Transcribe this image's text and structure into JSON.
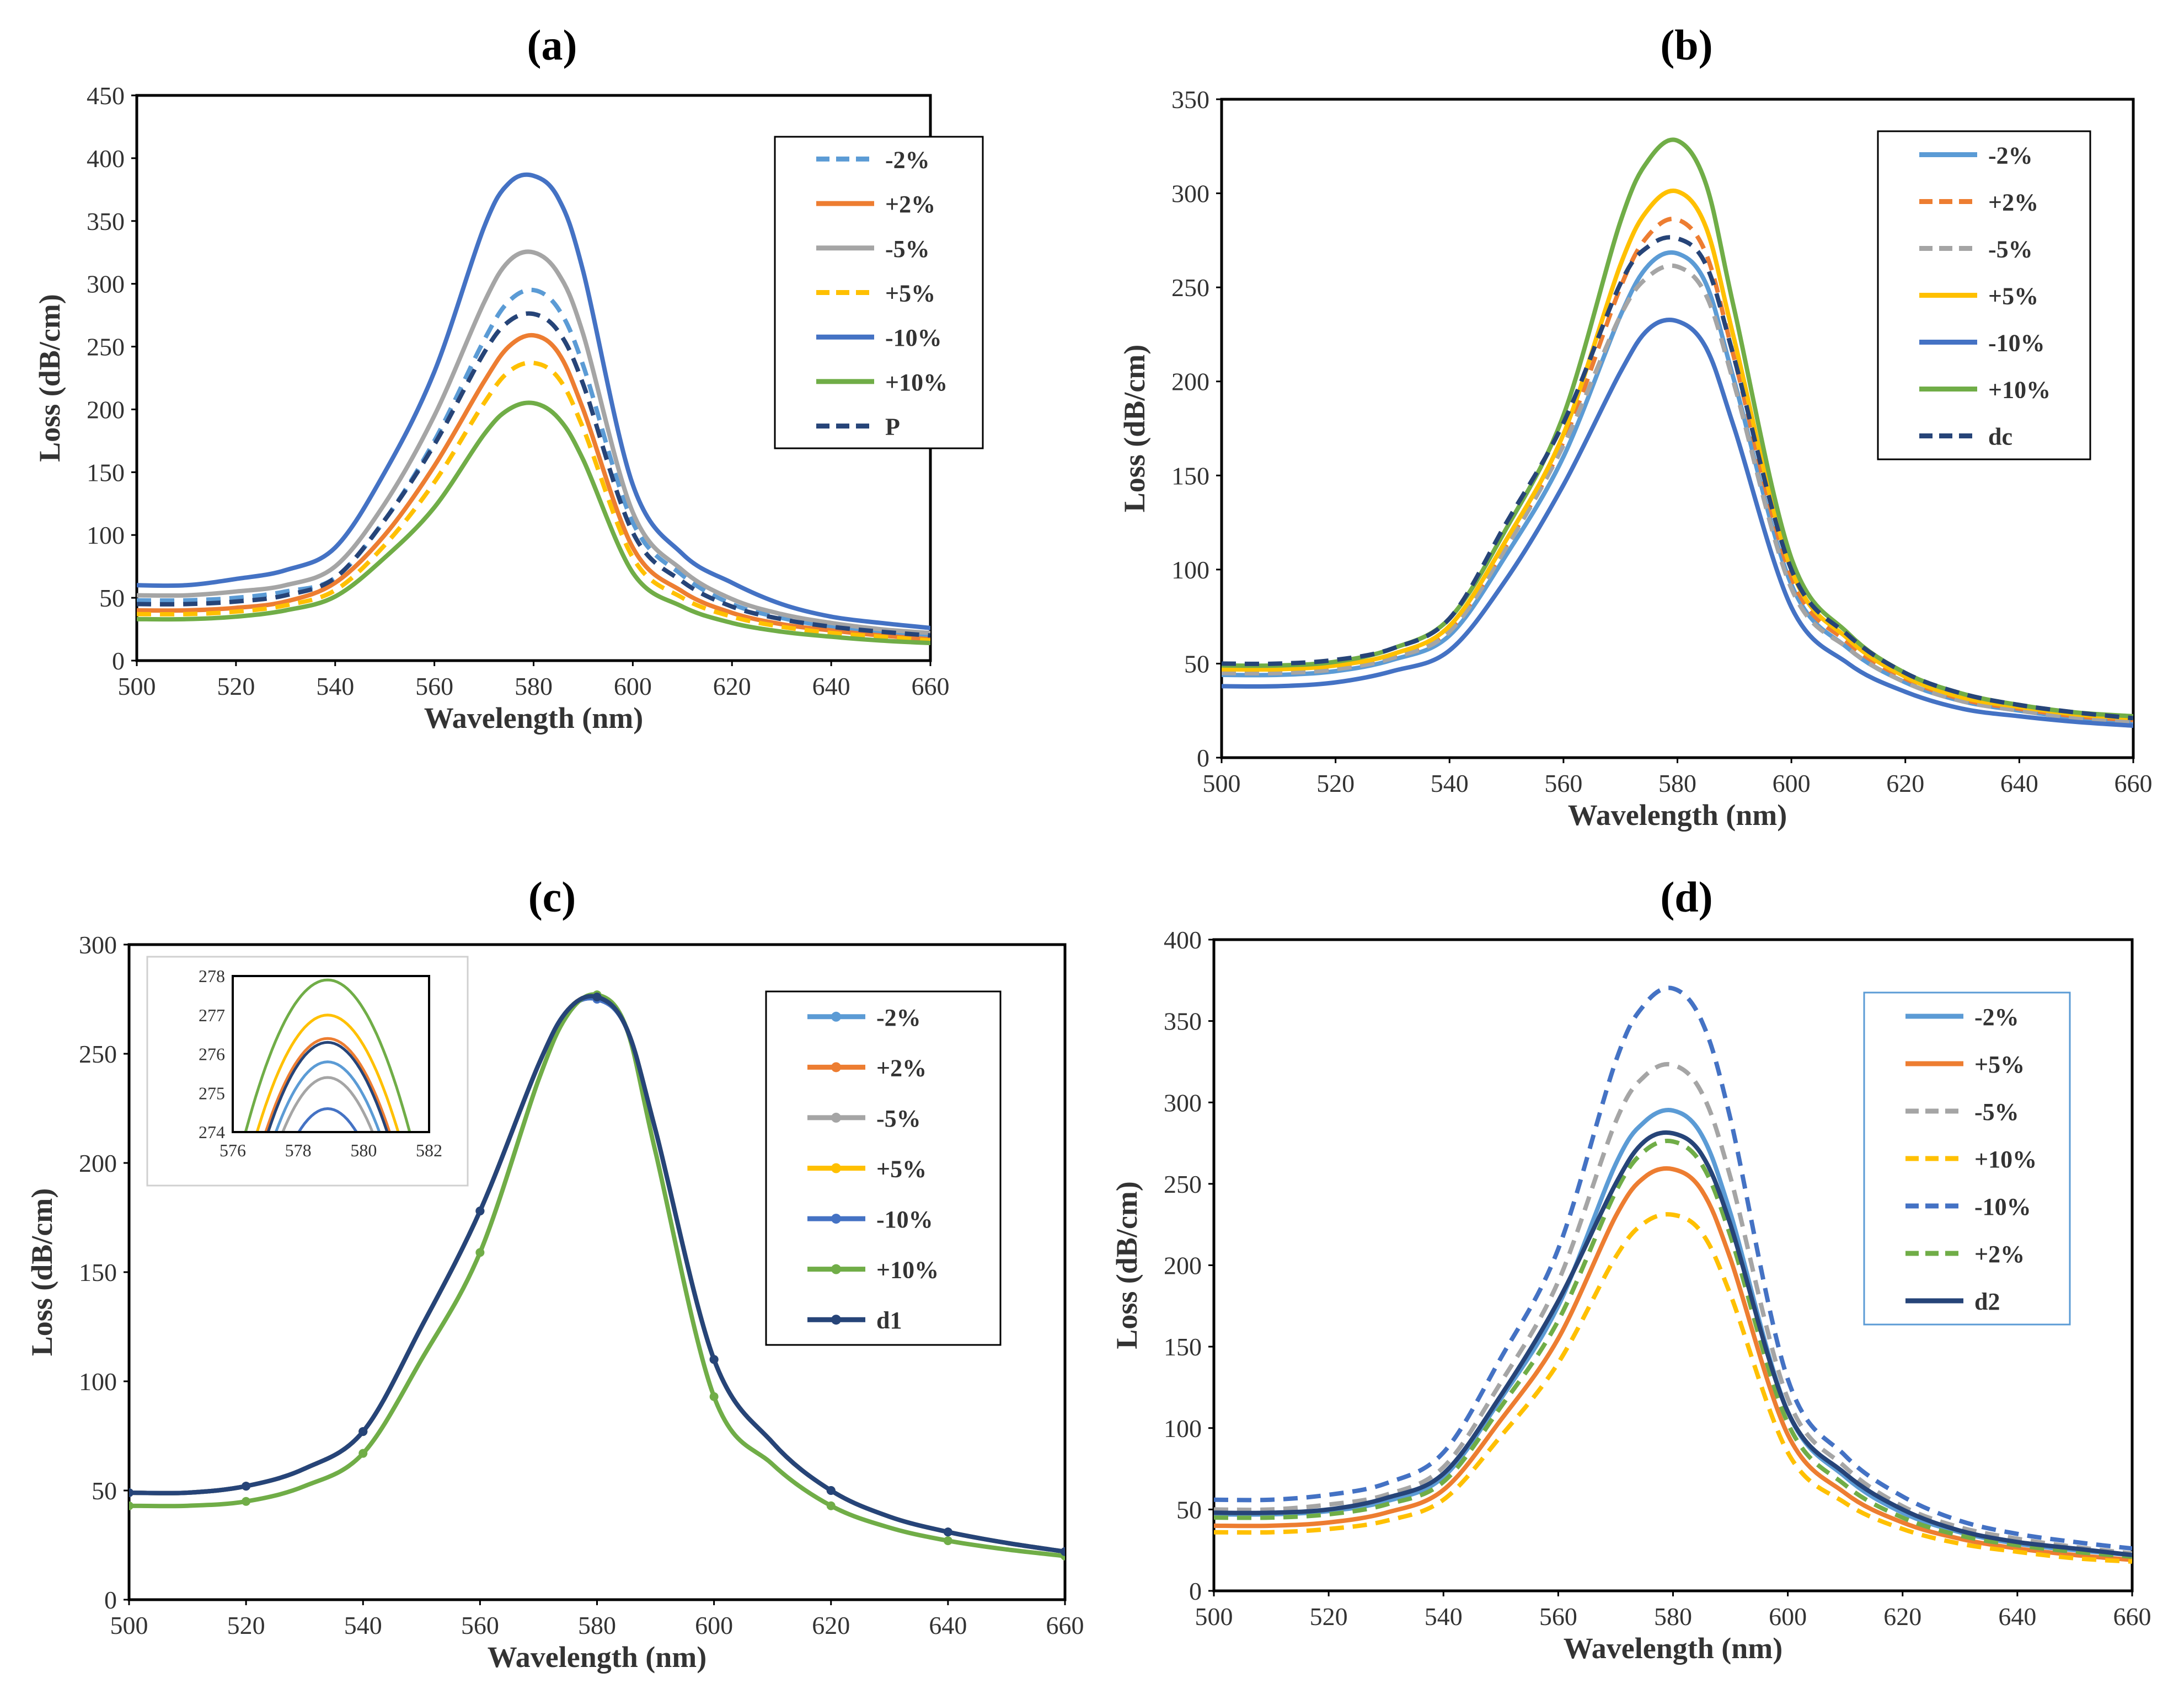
{
  "chart_data": [
    {
      "panel": "(a)",
      "type": "line",
      "xlabel": "Wavelength (nm)",
      "ylabel": "Loss (dB/cm)",
      "xlim": [
        500,
        660
      ],
      "ylim": [
        0,
        450
      ],
      "xticks": [
        500,
        520,
        540,
        560,
        580,
        600,
        620,
        640,
        660
      ],
      "yticks": [
        0,
        50,
        100,
        150,
        200,
        250,
        300,
        350,
        400,
        450
      ],
      "legend_position": "top-right",
      "x": [
        500,
        510,
        520,
        530,
        540,
        550,
        560,
        570,
        575,
        580,
        585,
        590,
        600,
        610,
        620,
        630,
        640,
        650,
        660
      ],
      "series": [
        {
          "name": "-2%",
          "color": "#5B9BD5",
          "dash": true,
          "values": [
            48,
            48,
            50,
            55,
            66,
            112,
            175,
            255,
            286,
            295,
            280,
            235,
            110,
            68,
            45,
            34,
            27,
            23,
            20
          ]
        },
        {
          "name": "+2%",
          "color": "#ED7D31",
          "dash": false,
          "values": [
            40,
            40,
            42,
            47,
            62,
            100,
            155,
            222,
            250,
            259,
            245,
            200,
            90,
            55,
            38,
            29,
            24,
            20,
            17
          ]
        },
        {
          "name": "-5%",
          "color": "#A5A5A5",
          "dash": false,
          "values": [
            52,
            52,
            55,
            60,
            75,
            125,
            195,
            285,
            318,
            325,
            308,
            260,
            118,
            72,
            49,
            37,
            30,
            25,
            22
          ]
        },
        {
          "name": "+5%",
          "color": "#FFC000",
          "dash": true,
          "values": [
            37,
            37,
            39,
            44,
            56,
            92,
            142,
            205,
            230,
            237,
            225,
            185,
            82,
            50,
            35,
            27,
            22,
            19,
            16
          ]
        },
        {
          "name": "-10%",
          "color": "#4472C4",
          "dash": false,
          "values": [
            60,
            60,
            65,
            72,
            90,
            150,
            230,
            345,
            380,
            386,
            368,
            310,
            140,
            85,
            62,
            45,
            35,
            30,
            26
          ]
        },
        {
          "name": "+10%",
          "color": "#70AD47",
          "dash": false,
          "values": [
            33,
            33,
            35,
            40,
            51,
            82,
            122,
            180,
            200,
            205,
            193,
            160,
            70,
            43,
            30,
            23,
            19,
            16,
            14
          ]
        },
        {
          "name": "P",
          "color": "#264478",
          "dash": true,
          "values": [
            45,
            45,
            47,
            52,
            66,
            112,
            172,
            245,
            270,
            276,
            262,
            220,
            102,
            63,
            43,
            33,
            27,
            23,
            20
          ]
        }
      ]
    },
    {
      "panel": "(b)",
      "type": "line",
      "xlabel": "Wavelength (nm)",
      "ylabel": "Loss (dB/cm)",
      "xlim": [
        500,
        660
      ],
      "ylim": [
        0,
        350
      ],
      "xticks": [
        500,
        520,
        540,
        560,
        580,
        600,
        620,
        640,
        660
      ],
      "yticks": [
        0,
        50,
        100,
        150,
        200,
        250,
        300,
        350
      ],
      "legend_position": "top-right",
      "x": [
        500,
        510,
        520,
        530,
        540,
        550,
        560,
        570,
        575,
        580,
        585,
        590,
        600,
        610,
        620,
        630,
        640,
        650,
        660
      ],
      "series": [
        {
          "name": "-2%",
          "color": "#5B9BD5",
          "dash": false,
          "values": [
            44,
            44,
            46,
            52,
            65,
            108,
            160,
            235,
            262,
            268,
            252,
            200,
            92,
            58,
            40,
            30,
            25,
            21,
            19
          ]
        },
        {
          "name": "+2%",
          "color": "#ED7D31",
          "dash": true,
          "values": [
            46,
            46,
            48,
            54,
            68,
            113,
            168,
            250,
            278,
            286,
            268,
            212,
            96,
            61,
            42,
            31,
            26,
            22,
            20
          ]
        },
        {
          "name": "-5%",
          "color": "#A5A5A5",
          "dash": true,
          "values": [
            45,
            45,
            47,
            53,
            67,
            112,
            166,
            235,
            256,
            261,
            246,
            198,
            90,
            58,
            40,
            30,
            25,
            21,
            19
          ]
        },
        {
          "name": "+5%",
          "color": "#FFC000",
          "dash": false,
          "values": [
            47,
            47,
            49,
            55,
            70,
            116,
            172,
            262,
            292,
            301,
            282,
            222,
            100,
            63,
            43,
            32,
            27,
            23,
            21
          ]
        },
        {
          "name": "-10%",
          "color": "#4472C4",
          "dash": false,
          "values": [
            38,
            38,
            40,
            46,
            57,
            95,
            145,
            205,
            228,
            232,
            218,
            175,
            80,
            50,
            35,
            26,
            22,
            19,
            17
          ]
        },
        {
          "name": "+10%",
          "color": "#70AD47",
          "dash": false,
          "values": [
            49,
            49,
            51,
            58,
            74,
            122,
            182,
            285,
            318,
            328,
            305,
            238,
            106,
            66,
            45,
            34,
            28,
            24,
            22
          ]
        },
        {
          "name": "dc",
          "color": "#264478",
          "dash": true,
          "values": [
            50,
            50,
            52,
            58,
            74,
            125,
            178,
            252,
            272,
            276,
            262,
            212,
            100,
            65,
            45,
            34,
            28,
            24,
            21
          ]
        }
      ]
    },
    {
      "panel": "(c)",
      "type": "line",
      "xlabel": "Wavelength (nm)",
      "ylabel": "Loss (dB/cm)",
      "xlim": [
        500,
        660
      ],
      "ylim": [
        0,
        300
      ],
      "xticks": [
        500,
        520,
        540,
        560,
        580,
        600,
        620,
        640,
        660
      ],
      "yticks": [
        0,
        50,
        100,
        150,
        200,
        250,
        300
      ],
      "legend_position": "top-right",
      "markers": true,
      "x": [
        500,
        510,
        520,
        530,
        540,
        550,
        560,
        570,
        575,
        580,
        585,
        590,
        600,
        610,
        620,
        630,
        640,
        650,
        660
      ],
      "series": [
        {
          "name": "-2%",
          "color": "#5B9BD5",
          "values": [
            49,
            49,
            52,
            60,
            77,
            125,
            178,
            245,
            270,
            275,
            262,
            215,
            110,
            72,
            50,
            38,
            31,
            26,
            22
          ]
        },
        {
          "name": "+2%",
          "color": "#ED7D31",
          "values": [
            49,
            49,
            52,
            60,
            77,
            125,
            178,
            245,
            270,
            276,
            262,
            215,
            110,
            72,
            50,
            38,
            31,
            26,
            22
          ]
        },
        {
          "name": "-5%",
          "color": "#A5A5A5",
          "values": [
            49,
            49,
            52,
            60,
            77,
            125,
            178,
            245,
            270,
            275,
            262,
            215,
            110,
            72,
            50,
            38,
            31,
            26,
            22
          ]
        },
        {
          "name": "+5%",
          "color": "#FFC000",
          "values": [
            49,
            49,
            52,
            60,
            77,
            125,
            178,
            245,
            270,
            276,
            262,
            215,
            110,
            72,
            50,
            38,
            31,
            26,
            22
          ]
        },
        {
          "name": "-10%",
          "color": "#4472C4",
          "values": [
            49,
            49,
            52,
            60,
            77,
            125,
            178,
            245,
            270,
            275,
            262,
            215,
            110,
            72,
            50,
            38,
            31,
            26,
            22
          ]
        },
        {
          "name": "+10%",
          "color": "#70AD47",
          "values": [
            43,
            43,
            45,
            52,
            67,
            110,
            159,
            238,
            268,
            277,
            262,
            205,
            93,
            62,
            43,
            33,
            27,
            23,
            20
          ]
        },
        {
          "name": "d1",
          "color": "#264478",
          "values": [
            49,
            49,
            52,
            60,
            77,
            125,
            178,
            245,
            270,
            276,
            262,
            215,
            110,
            72,
            50,
            38,
            31,
            26,
            22
          ]
        }
      ],
      "inset": {
        "xlim": [
          576,
          582
        ],
        "ylim": [
          274,
          278
        ],
        "xticks": [
          576,
          578,
          580,
          582
        ],
        "yticks": [
          274,
          275,
          276,
          277,
          278
        ],
        "peak_x": 578.9,
        "curves": [
          {
            "color": "#70AD47",
            "peak": 277.9
          },
          {
            "color": "#FFC000",
            "peak": 277.0
          },
          {
            "color": "#ED7D31",
            "peak": 276.4
          },
          {
            "color": "#264478",
            "peak": 276.3
          },
          {
            "color": "#5B9BD5",
            "peak": 275.8
          },
          {
            "color": "#A5A5A5",
            "peak": 275.4
          },
          {
            "color": "#4472C4",
            "peak": 274.6
          }
        ]
      }
    },
    {
      "panel": "(d)",
      "type": "line",
      "xlabel": "Wavelength (nm)",
      "ylabel": "Loss (dB/cm)",
      "xlim": [
        500,
        660
      ],
      "ylim": [
        0,
        400
      ],
      "xticks": [
        500,
        520,
        540,
        560,
        580,
        600,
        620,
        640,
        660
      ],
      "yticks": [
        0,
        50,
        100,
        150,
        200,
        250,
        300,
        350,
        400
      ],
      "legend_position": "top-right",
      "x": [
        500,
        510,
        520,
        530,
        540,
        550,
        560,
        570,
        575,
        580,
        585,
        590,
        600,
        610,
        620,
        630,
        640,
        650,
        660
      ],
      "series": [
        {
          "name": "-2%",
          "color": "#5B9BD5",
          "dash": false,
          "values": [
            47,
            47,
            49,
            55,
            70,
            118,
            175,
            262,
            288,
            295,
            280,
            232,
            110,
            70,
            48,
            36,
            29,
            25,
            22
          ]
        },
        {
          "name": "+5%",
          "color": "#ED7D31",
          "dash": false,
          "values": [
            40,
            40,
            42,
            48,
            62,
            105,
            155,
            230,
            254,
            259,
            246,
            204,
            96,
            60,
            42,
            32,
            26,
            22,
            19
          ]
        },
        {
          "name": "-5%",
          "color": "#A5A5A5",
          "dash": true,
          "values": [
            50,
            50,
            53,
            59,
            76,
            128,
            190,
            288,
            316,
            323,
            306,
            254,
            118,
            76,
            52,
            39,
            32,
            27,
            23
          ]
        },
        {
          "name": "+10%",
          "color": "#FFC000",
          "dash": true,
          "values": [
            36,
            36,
            38,
            43,
            56,
            95,
            140,
            205,
            226,
            231,
            220,
            182,
            85,
            54,
            38,
            29,
            24,
            20,
            18
          ]
        },
        {
          "name": "-10%",
          "color": "#4472C4",
          "dash": true,
          "values": [
            56,
            56,
            59,
            66,
            85,
            143,
            210,
            325,
            360,
            370,
            350,
            290,
            130,
            83,
            58,
            43,
            35,
            30,
            26
          ]
        },
        {
          "name": "+2%",
          "color": "#70AD47",
          "dash": true,
          "values": [
            45,
            45,
            47,
            53,
            67,
            113,
            166,
            245,
            270,
            276,
            262,
            218,
            103,
            65,
            45,
            34,
            28,
            24,
            21
          ]
        },
        {
          "name": "d2",
          "color": "#264478",
          "dash": false,
          "values": [
            48,
            48,
            50,
            57,
            72,
            120,
            178,
            250,
            276,
            281,
            268,
            225,
            110,
            72,
            50,
            37,
            30,
            26,
            22
          ]
        }
      ]
    }
  ]
}
